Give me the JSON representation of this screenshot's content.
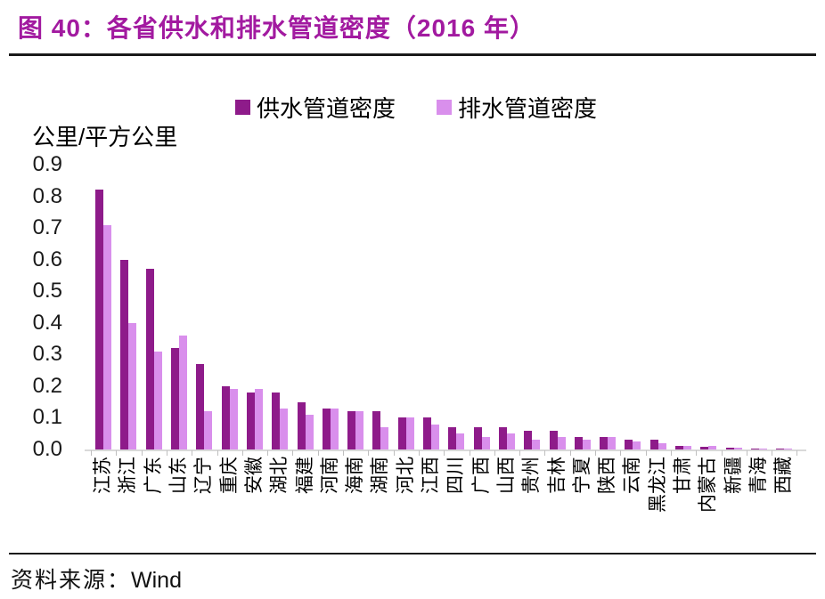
{
  "figure": {
    "title": "图 40：各省供水和排水管道密度（2016 年）",
    "source_label": "资料来源：",
    "source_value": "Wind"
  },
  "colors": {
    "title": "#a21aa0",
    "supply_bar": "#8e1b8a",
    "drainage_bar": "#d98fec",
    "axis_line": "#d9d9d9",
    "tick": "#bfbfbf",
    "text": "#000000"
  },
  "chart_data": {
    "type": "bar",
    "title": "各省供水和排水管道密度（2016 年）",
    "unit_label": "公里/平方公里",
    "xlabel": "",
    "ylabel": "公里/平方公里",
    "ylim": [
      0,
      0.9
    ],
    "yticks": [
      "0.9",
      "0.8",
      "0.7",
      "0.6",
      "0.5",
      "0.4",
      "0.3",
      "0.2",
      "0.1",
      "0.0"
    ],
    "grid": false,
    "legend_position": "top",
    "categories": [
      "江苏",
      "浙江",
      "广东",
      "山东",
      "辽宁",
      "重庆",
      "安徽",
      "湖北",
      "福建",
      "河南",
      "海南",
      "湖南",
      "河北",
      "江西",
      "四川",
      "广西",
      "山西",
      "贵州",
      "吉林",
      "宁夏",
      "陕西",
      "云南",
      "黑龙江",
      "甘肃",
      "内蒙古",
      "新疆",
      "青海",
      "西藏"
    ],
    "series": [
      {
        "name": "供水管道密度",
        "color": "#8e1b8a",
        "values": [
          0.82,
          0.6,
          0.57,
          0.32,
          0.27,
          0.2,
          0.18,
          0.18,
          0.15,
          0.13,
          0.12,
          0.12,
          0.1,
          0.1,
          0.07,
          0.07,
          0.07,
          0.06,
          0.06,
          0.04,
          0.04,
          0.03,
          0.03,
          0.012,
          0.008,
          0.006,
          0.004,
          0.002
        ]
      },
      {
        "name": "排水管道密度",
        "color": "#d98fec",
        "values": [
          0.71,
          0.4,
          0.31,
          0.36,
          0.12,
          0.19,
          0.19,
          0.13,
          0.11,
          0.13,
          0.12,
          0.07,
          0.1,
          0.08,
          0.05,
          0.04,
          0.05,
          0.03,
          0.04,
          0.03,
          0.04,
          0.025,
          0.02,
          0.012,
          0.012,
          0.006,
          0.004,
          0.002
        ]
      }
    ]
  }
}
